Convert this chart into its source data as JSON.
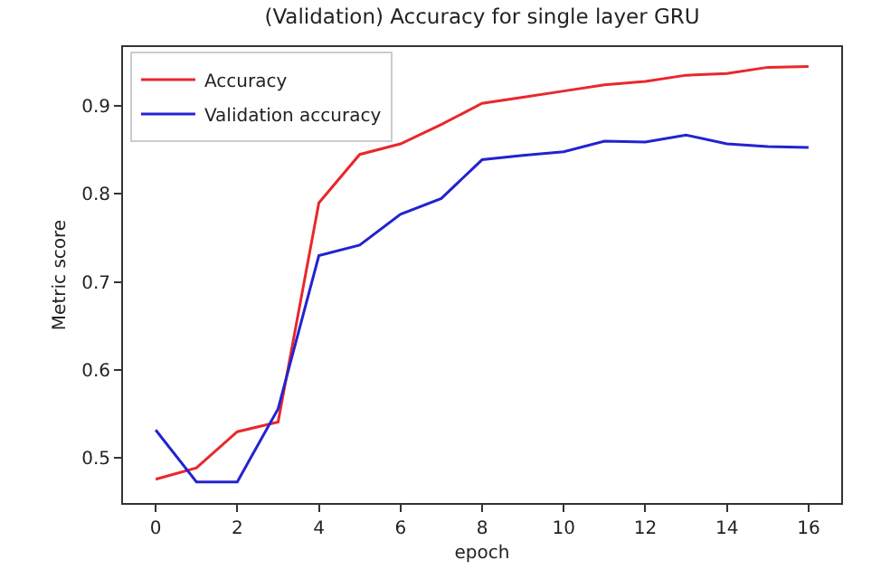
{
  "chart_data": {
    "type": "line",
    "title": "(Validation) Accuracy for single layer GRU",
    "xlabel": "epoch",
    "ylabel": "Metric score",
    "x": [
      0,
      1,
      2,
      3,
      4,
      5,
      6,
      7,
      8,
      9,
      10,
      11,
      12,
      13,
      14,
      15,
      16
    ],
    "series": [
      {
        "name": "Accuracy",
        "color": "#e8282c",
        "values": [
          0.476,
          0.489,
          0.53,
          0.541,
          0.79,
          0.845,
          0.857,
          0.879,
          0.903,
          0.91,
          0.917,
          0.924,
          0.928,
          0.935,
          0.937,
          0.944,
          0.945
        ]
      },
      {
        "name": "Validation accuracy",
        "color": "#2323d0",
        "values": [
          0.532,
          0.473,
          0.473,
          0.556,
          0.73,
          0.742,
          0.777,
          0.795,
          0.839,
          0.844,
          0.848,
          0.86,
          0.859,
          0.867,
          0.857,
          0.854,
          0.853
        ]
      }
    ],
    "xlim": [
      -0.8,
      16.8
    ],
    "ylim": [
      0.449,
      0.967
    ],
    "xticks": [
      0,
      2,
      4,
      6,
      8,
      10,
      12,
      14,
      16
    ],
    "yticks": [
      0.5,
      0.6,
      0.7,
      0.8,
      0.9
    ],
    "grid": false,
    "legend": "top left",
    "marker": "none",
    "line_style": "solid"
  }
}
